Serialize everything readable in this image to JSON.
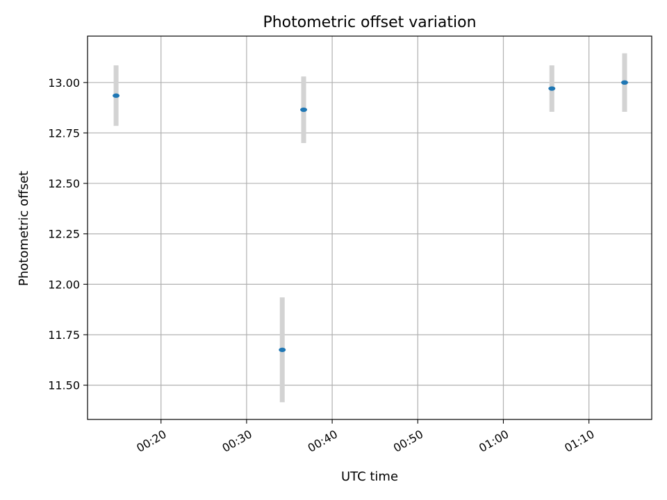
{
  "chart_data": {
    "type": "scatter",
    "title": "Photometric offset variation",
    "xlabel": "UTC time",
    "ylabel": "Photometric offset",
    "x_tick_labels": [
      "00:20",
      "00:30",
      "00:40",
      "00:50",
      "01:00",
      "01:10"
    ],
    "y_tick_labels": [
      "11.50",
      "11.75",
      "12.00",
      "12.25",
      "12.50",
      "12.75",
      "13.00"
    ],
    "xlim": [
      "00:11:25",
      "01:17:20"
    ],
    "ylim": [
      11.33,
      13.23
    ],
    "grid": true,
    "legend": "none",
    "series": [
      {
        "x": [
          "00:14:45",
          "00:34:10",
          "00:36:40",
          "01:05:40",
          "01:14:10"
        ],
        "y": [
          12.935,
          11.675,
          12.865,
          12.97,
          13.0
        ],
        "yerr": [
          0.15,
          0.26,
          0.165,
          0.115,
          0.145
        ]
      }
    ],
    "colors": {
      "marker": "#1f77b4",
      "errorbar": "#d3d3d3",
      "grid": "#b0b0b0",
      "axes": "#000000"
    }
  }
}
